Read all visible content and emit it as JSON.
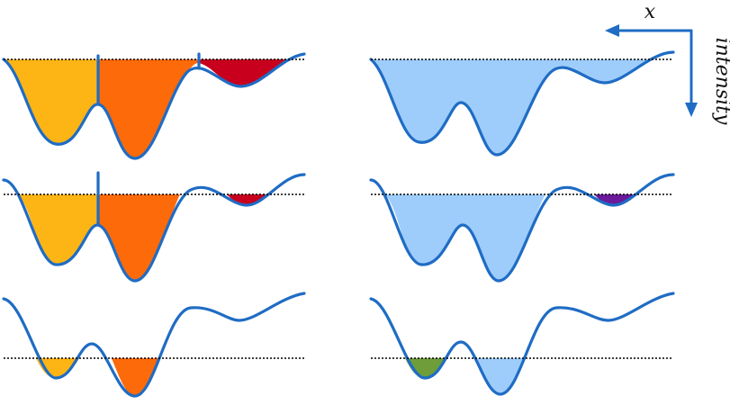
{
  "axes_indicator": {
    "x_label": "x",
    "y_label": "intensity"
  },
  "colors": {
    "profile_line": "#1f6cc4",
    "threshold_line": "#000000",
    "basin_1": "#fdb515",
    "basin_2": "#fd6a0a",
    "basin_3": "#c8001e",
    "region_light_blue": "#9ecdfb",
    "region_purple": "#6a1a9a",
    "region_green": "#6e9d3a"
  },
  "panels": [
    {
      "id": "left-top",
      "column": "left",
      "level": "high",
      "fills": [
        "basin_1",
        "basin_2",
        "basin_3"
      ],
      "dividers": 2
    },
    {
      "id": "left-middle",
      "column": "left",
      "level": "middle",
      "fills": [
        "basin_1",
        "basin_2",
        "basin_3"
      ],
      "dividers": 1
    },
    {
      "id": "left-bottom",
      "column": "left",
      "level": "low",
      "fills": [
        "basin_1",
        "basin_2"
      ],
      "dividers": 0
    },
    {
      "id": "right-top",
      "column": "right",
      "level": "high",
      "fills": [
        "region_light_blue"
      ],
      "dividers": 0
    },
    {
      "id": "right-middle",
      "column": "right",
      "level": "middle",
      "fills": [
        "region_light_blue",
        "region_purple"
      ],
      "dividers": 0
    },
    {
      "id": "right-bottom",
      "column": "right",
      "level": "low",
      "fills": [
        "region_green",
        "region_light_blue"
      ],
      "dividers": 0
    }
  ]
}
